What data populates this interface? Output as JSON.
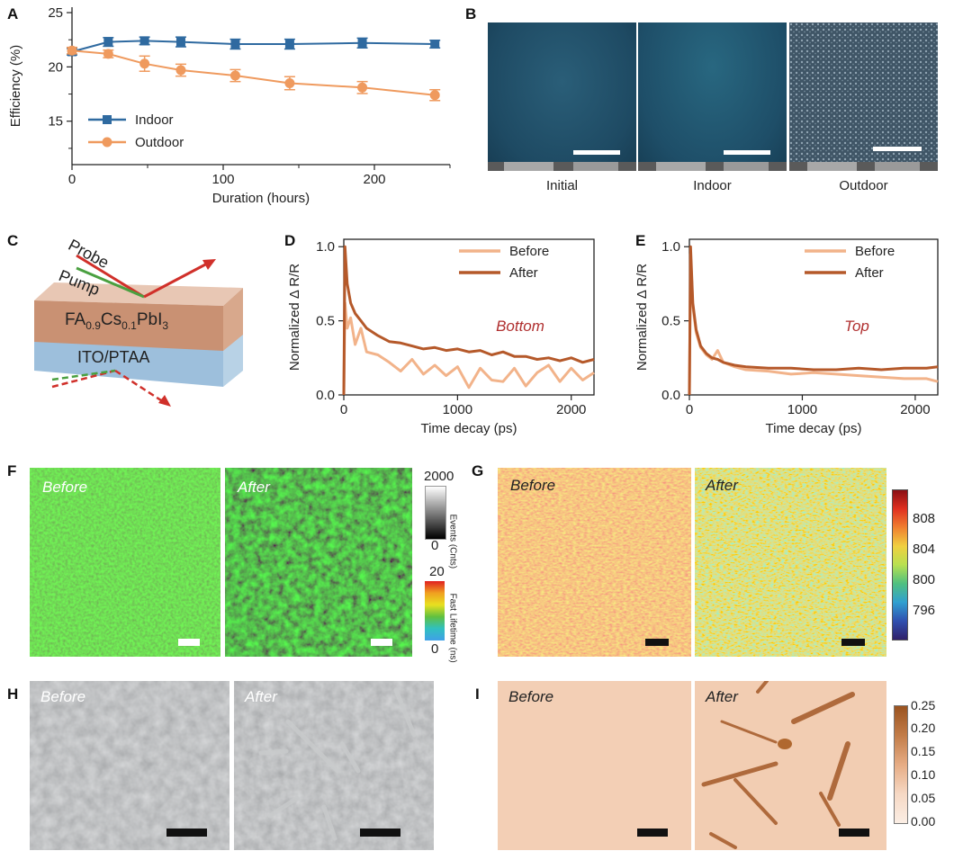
{
  "panel_labels": {
    "A": "A",
    "B": "B",
    "C": "C",
    "D": "D",
    "E": "E",
    "F": "F",
    "G": "G",
    "H": "H",
    "I": "I"
  },
  "panelB": {
    "captions": [
      "Initial",
      "Indoor",
      "Outdoor"
    ]
  },
  "panelC": {
    "probe": "Probe",
    "pump": "Pump",
    "layer_top": "FA0.9Cs0.1PbI3",
    "layer_top_parts": [
      "FA",
      "0.9",
      "Cs",
      "0.1",
      "PbI",
      "3"
    ],
    "layer_bottom": "ITO/PTAA"
  },
  "panelF": {
    "before": "Before",
    "after": "After",
    "events_top": "2000",
    "events_bottom": "0",
    "events_label": "Events (Cnts)",
    "lifetime_top": "20",
    "lifetime_bottom": "0",
    "lifetime_label": "Fast Lifetime (ns)"
  },
  "panelG": {
    "before": "Before",
    "after": "After",
    "colorbar_ticks": [
      "808",
      "804",
      "800",
      "796"
    ]
  },
  "panelH": {
    "before": "Before",
    "after": "After"
  },
  "panelI": {
    "before": "Before",
    "after": "After",
    "colorbar_ticks": [
      "0.25",
      "0.20",
      "0.15",
      "0.10",
      "0.05",
      "0.00"
    ]
  },
  "chart_data": [
    {
      "id": "A",
      "type": "line",
      "xlabel": "Duration (hours)",
      "ylabel": "Efficiency (%)",
      "xlim": [
        0,
        250
      ],
      "ylim": [
        11,
        25.5
      ],
      "xticks": [
        0,
        100,
        200
      ],
      "yticks": [
        15,
        20,
        25
      ],
      "legend_position": "center-left",
      "series": [
        {
          "name": "Indoor",
          "color": "#2f6aa0",
          "marker": "square",
          "x": [
            0,
            24,
            48,
            72,
            108,
            144,
            192,
            240
          ],
          "y": [
            21.4,
            22.3,
            22.4,
            22.3,
            22.1,
            22.1,
            22.2,
            22.1
          ],
          "err": [
            0.3,
            0.4,
            0.35,
            0.45,
            0.45,
            0.45,
            0.45,
            0.35
          ]
        },
        {
          "name": "Outdoor",
          "color": "#ef9a5e",
          "marker": "circle",
          "x": [
            0,
            24,
            48,
            72,
            108,
            144,
            192,
            240
          ],
          "y": [
            21.5,
            21.2,
            20.3,
            19.7,
            19.2,
            18.5,
            18.1,
            17.4
          ],
          "err": [
            0.3,
            0.35,
            0.7,
            0.55,
            0.55,
            0.6,
            0.55,
            0.5
          ]
        }
      ]
    },
    {
      "id": "D",
      "type": "line",
      "xlabel": "Time decay (ps)",
      "ylabel": "Normalized Δ R/R",
      "xlim": [
        0,
        2200
      ],
      "ylim": [
        0,
        1.05
      ],
      "xticks": [
        0,
        1000,
        2000
      ],
      "yticks": [
        0.0,
        0.5,
        1.0
      ],
      "annotation": "Bottom",
      "legend_position": "top-right",
      "series": [
        {
          "name": "Before",
          "color": "#f2b38a",
          "x": [
            0,
            10,
            30,
            60,
            100,
            150,
            200,
            300,
            400,
            500,
            600,
            700,
            800,
            900,
            1000,
            1100,
            1200,
            1300,
            1400,
            1500,
            1600,
            1700,
            1800,
            1900,
            2000,
            2100,
            2200
          ],
          "y": [
            0.0,
            0.62,
            0.45,
            0.52,
            0.34,
            0.45,
            0.29,
            0.27,
            0.22,
            0.16,
            0.24,
            0.14,
            0.2,
            0.13,
            0.19,
            0.05,
            0.18,
            0.1,
            0.09,
            0.18,
            0.06,
            0.15,
            0.2,
            0.09,
            0.18,
            0.1,
            0.15
          ]
        },
        {
          "name": "After",
          "color": "#b5592a",
          "x": [
            0,
            10,
            30,
            60,
            100,
            150,
            200,
            300,
            400,
            500,
            600,
            700,
            800,
            900,
            1000,
            1100,
            1200,
            1300,
            1400,
            1500,
            1600,
            1700,
            1800,
            1900,
            2000,
            2100,
            2200
          ],
          "y": [
            0.0,
            1.0,
            0.75,
            0.62,
            0.55,
            0.5,
            0.45,
            0.4,
            0.36,
            0.35,
            0.33,
            0.31,
            0.32,
            0.3,
            0.31,
            0.29,
            0.3,
            0.27,
            0.29,
            0.26,
            0.26,
            0.24,
            0.25,
            0.23,
            0.25,
            0.22,
            0.24
          ]
        }
      ]
    },
    {
      "id": "E",
      "type": "line",
      "xlabel": "Time decay (ps)",
      "ylabel": "Normalized Δ R/R",
      "xlim": [
        0,
        2200
      ],
      "ylim": [
        0,
        1.05
      ],
      "xticks": [
        0,
        1000,
        2000
      ],
      "yticks": [
        0.0,
        0.5,
        1.0
      ],
      "annotation": "Top",
      "legend_position": "top-right",
      "series": [
        {
          "name": "Before",
          "color": "#f2b38a",
          "x": [
            0,
            10,
            30,
            60,
            100,
            150,
            200,
            250,
            300,
            400,
            500,
            700,
            900,
            1100,
            1300,
            1500,
            1700,
            1900,
            2100,
            2200
          ],
          "y": [
            0.0,
            0.95,
            0.6,
            0.42,
            0.32,
            0.27,
            0.24,
            0.3,
            0.22,
            0.19,
            0.17,
            0.16,
            0.14,
            0.15,
            0.14,
            0.13,
            0.12,
            0.11,
            0.11,
            0.09
          ]
        },
        {
          "name": "After",
          "color": "#b5592a",
          "x": [
            0,
            10,
            30,
            60,
            100,
            150,
            200,
            250,
            300,
            400,
            500,
            700,
            900,
            1100,
            1300,
            1500,
            1700,
            1900,
            2100,
            2200
          ],
          "y": [
            0.0,
            1.0,
            0.62,
            0.44,
            0.33,
            0.28,
            0.25,
            0.24,
            0.22,
            0.2,
            0.19,
            0.18,
            0.18,
            0.17,
            0.17,
            0.18,
            0.17,
            0.18,
            0.18,
            0.19
          ]
        }
      ]
    }
  ]
}
